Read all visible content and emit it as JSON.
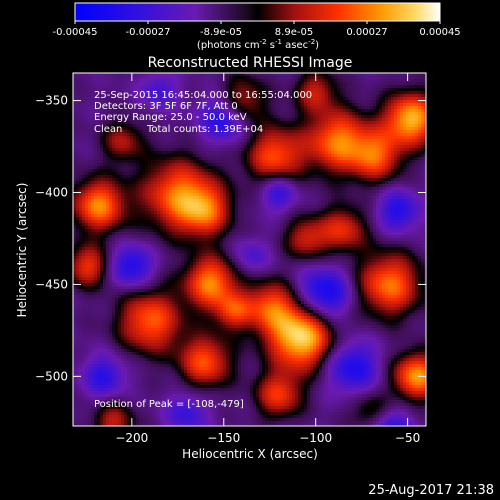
{
  "colorbar": {
    "ticks": [
      "-0.00045",
      "-0.00027",
      "-8.9e-05",
      "8.9e-05",
      "0.00027",
      "0.00045"
    ],
    "units_main": "(photons cm",
    "units_exp1": "-2",
    "units_mid": " s",
    "units_exp2": "-1",
    "units_mid2": " asec",
    "units_exp3": "-2",
    "units_end": ")"
  },
  "chart_data": {
    "type": "heatmap",
    "title": "Reconstructed RHESSI Image",
    "xlabel": "Heliocentric X (arcsec)",
    "ylabel": "Heliocentric Y (arcsec)",
    "xlim": [
      -232,
      -40
    ],
    "ylim": [
      -527,
      -335
    ],
    "x_ticks": [
      -200,
      -150,
      -100,
      -50
    ],
    "y_ticks": [
      -350,
      -400,
      -450,
      -500
    ],
    "colormap": [
      "#0000ff",
      "#5a1aa6",
      "#000000",
      "#c0181a",
      "#ff7a00",
      "#ffd050",
      "#ffffff"
    ],
    "value_range": [
      -0.00045,
      0.00045
    ],
    "peak": [
      -108,
      -479
    ],
    "blobs": [
      {
        "x": -108,
        "y": -479,
        "r": 12,
        "v": 0.00045
      },
      {
        "x": -157,
        "y": -449,
        "r": 10,
        "v": 0.00034
      },
      {
        "x": -190,
        "y": -470,
        "r": 12,
        "v": 0.0003
      },
      {
        "x": -160,
        "y": -492,
        "r": 10,
        "v": 0.00028
      },
      {
        "x": -175,
        "y": -401,
        "r": 14,
        "v": 0.0003
      },
      {
        "x": -160,
        "y": -410,
        "r": 10,
        "v": 0.00024
      },
      {
        "x": -122,
        "y": -380,
        "r": 11,
        "v": 0.00028
      },
      {
        "x": -88,
        "y": -372,
        "r": 12,
        "v": 0.00032
      },
      {
        "x": -67,
        "y": -380,
        "r": 10,
        "v": 0.00026
      },
      {
        "x": -48,
        "y": -360,
        "r": 10,
        "v": 0.0004
      },
      {
        "x": -60,
        "y": -450,
        "r": 12,
        "v": 0.00032
      },
      {
        "x": -45,
        "y": -500,
        "r": 9,
        "v": 0.00036
      },
      {
        "x": -125,
        "y": -462,
        "r": 10,
        "v": 0.00026
      },
      {
        "x": -218,
        "y": -407,
        "r": 10,
        "v": 0.00034
      },
      {
        "x": -224,
        "y": -440,
        "r": 8,
        "v": 0.00024
      },
      {
        "x": -85,
        "y": -420,
        "r": 9,
        "v": 0.00022
      },
      {
        "x": -105,
        "y": -425,
        "r": 8,
        "v": 0.0002
      },
      {
        "x": -120,
        "y": -510,
        "r": 9,
        "v": 0.00024
      },
      {
        "x": -145,
        "y": -465,
        "r": 7,
        "v": 0.0002
      },
      {
        "x": -205,
        "y": -372,
        "r": 8,
        "v": 0.00016
      },
      {
        "x": -140,
        "y": -350,
        "r": 9,
        "v": 0.0002
      },
      {
        "x": -210,
        "y": -525,
        "r": 8,
        "v": 0.00018
      },
      {
        "x": -100,
        "y": -345,
        "r": 8,
        "v": 0.00018
      },
      {
        "x": -70,
        "y": -520,
        "r": 8,
        "v": 0.00014
      },
      {
        "x": -200,
        "y": -440,
        "r": 8,
        "v": -0.0003
      },
      {
        "x": -150,
        "y": -360,
        "r": 9,
        "v": -0.0003
      },
      {
        "x": -95,
        "y": -455,
        "r": 10,
        "v": -0.00034
      },
      {
        "x": -80,
        "y": -495,
        "r": 10,
        "v": -0.0003
      },
      {
        "x": -120,
        "y": -400,
        "r": 7,
        "v": -0.00026
      },
      {
        "x": -215,
        "y": -500,
        "r": 8,
        "v": -0.00026
      },
      {
        "x": -55,
        "y": -410,
        "r": 8,
        "v": -0.00028
      },
      {
        "x": -170,
        "y": -520,
        "r": 8,
        "v": -0.00022
      },
      {
        "x": -60,
        "y": -530,
        "r": 9,
        "v": -0.00028
      },
      {
        "x": -185,
        "y": -345,
        "r": 7,
        "v": -0.0002
      },
      {
        "x": -135,
        "y": -435,
        "r": 7,
        "v": -0.00018
      }
    ]
  },
  "info": {
    "time_range": "25-Sep-2015 16:45:04.000 to 16:55:04.000",
    "detectors": "Detectors: 3F 5F 6F 7F, Att 0",
    "energy": "Energy Range: 25.0 - 50.0 keV",
    "algorithm": "Clean",
    "counts": "Total counts: 1.39E+04",
    "peak_label": "Position of Peak = [-108,-479]"
  },
  "footer": {
    "timestamp": "25-Aug-2017 21:38"
  }
}
